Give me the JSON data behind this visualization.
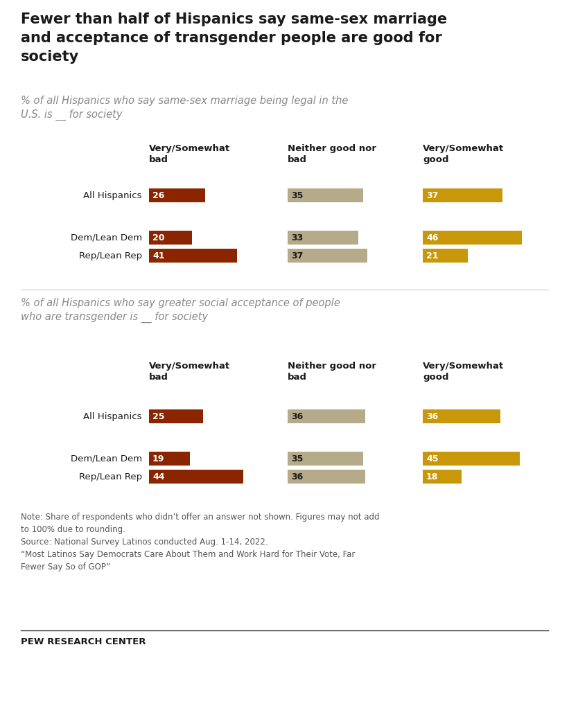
{
  "title": "Fewer than half of Hispanics say same-sex marriage\nand acceptance of transgender people are good for\nsociety",
  "subtitle1": "% of all Hispanics who say same-sex marriage being legal in the\nU.S. is __ for society",
  "subtitle2": "% of all Hispanics who say greater social acceptance of people\nwho are transgender is __ for society",
  "col_headers": [
    "Very/Somewhat\nbad",
    "Neither good nor\nbad",
    "Very/Somewhat\ngood"
  ],
  "row_labels": [
    "All Hispanics",
    "Dem/Lean Dem",
    "Rep/Lean Rep"
  ],
  "chart1": {
    "bad": [
      26,
      20,
      41
    ],
    "neutral": [
      35,
      33,
      37
    ],
    "good": [
      37,
      46,
      21
    ]
  },
  "chart2": {
    "bad": [
      25,
      19,
      44
    ],
    "neutral": [
      36,
      35,
      36
    ],
    "good": [
      36,
      45,
      18
    ]
  },
  "color_bad": "#8B2500",
  "color_neutral": "#B5AA8A",
  "color_good": "#C8980A",
  "text_color": "#1a1a1a",
  "note_color": "#555555",
  "subtitle_color": "#888888",
  "background": "#FFFFFF",
  "note_text": "Note: Share of respondents who didn’t offer an answer not shown. Figures may not add\nto 100% due to rounding.\nSource: National Survey Latinos conducted Aug. 1-14, 2022.\n“Most Latinos Say Democrats Care About Them and Work Hard for Their Vote, Far\nFewer Say So of GOP”",
  "footer": "PEW RESEARCH CENTER",
  "max_val": 50
}
